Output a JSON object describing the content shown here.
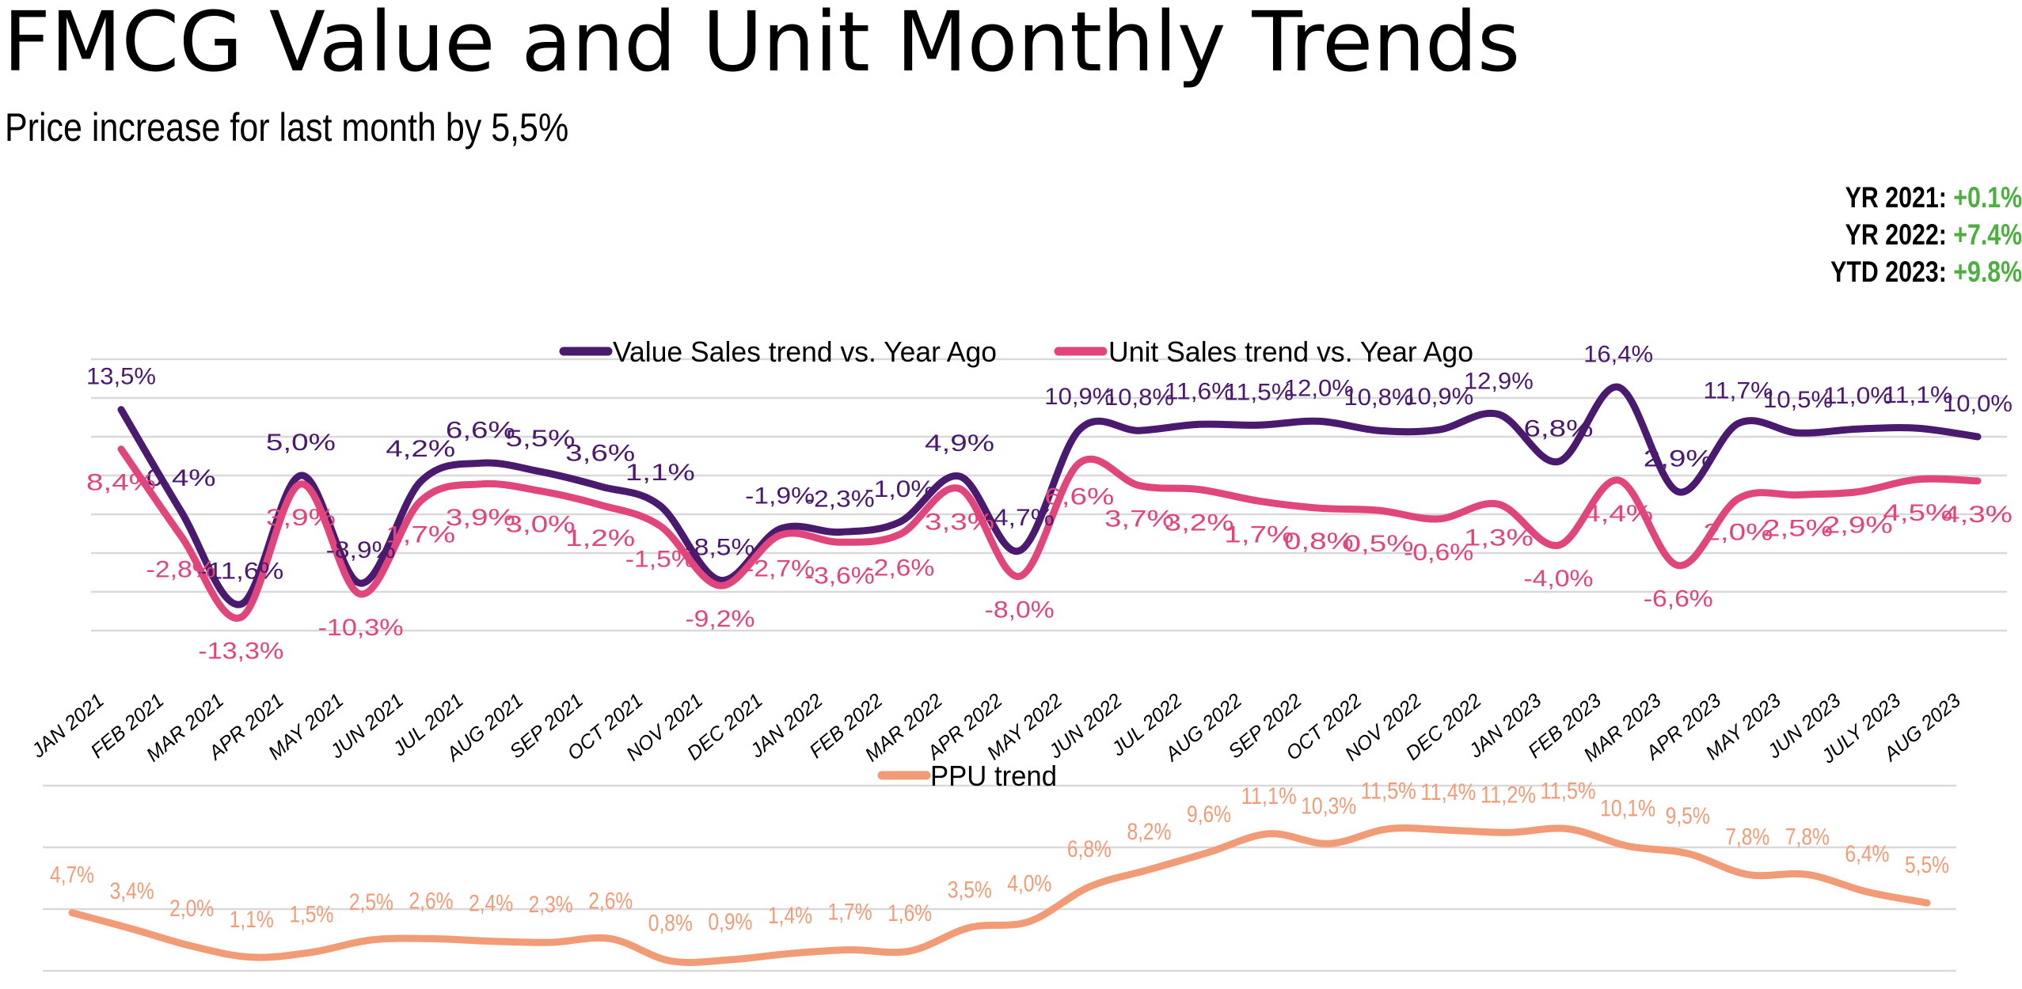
{
  "header": {
    "title": "FMCG Value and Unit Monthly Trends",
    "subtitle": "Price increase for last month by 5,5%"
  },
  "summary": [
    {
      "label": "YR 2021:",
      "value": "+0.1%"
    },
    {
      "label": "YR 2022:",
      "value": "+7.4%"
    },
    {
      "label": "YTD 2023:",
      "value": "+9.8%"
    }
  ],
  "colors": {
    "value": "#4a1a6e",
    "unit": "#e0457c",
    "ppu": "#f29b77",
    "positive": "#4caf3f",
    "grid": "#d9d9d9"
  },
  "chart_data": [
    {
      "type": "line",
      "title": "",
      "xlabel": "",
      "ylabel": "",
      "ylim": [
        -15,
        20
      ],
      "grid": true,
      "legend": "top-center",
      "categories": [
        "JAN 2021",
        "FEB 2021",
        "MAR 2021",
        "APR 2021",
        "MAY 2021",
        "JUN 2021",
        "JUL 2021",
        "AUG 2021",
        "SEP 2021",
        "OCT 2021",
        "NOV 2021",
        "DEC 2021",
        "JAN 2022",
        "FEB 2022",
        "MAR 2022",
        "APR 2022",
        "MAY 2022",
        "JUN 2022",
        "JUL 2022",
        "AUG 2022",
        "SEP 2022",
        "OCT 2022",
        "NOV 2022",
        "DEC 2022",
        "JAN 2023",
        "FEB 2023",
        "MAR 2023",
        "APR 2023",
        "MAY 2023",
        "JUN 2023",
        "JULY 2023",
        "AUG 2023"
      ],
      "series": [
        {
          "name": "Value Sales trend vs. Year Ago",
          "values": [
            13.5,
            0.4,
            -11.6,
            5.0,
            -8.9,
            4.2,
            6.6,
            5.5,
            3.6,
            1.1,
            -8.5,
            -1.9,
            -2.3,
            -1.0,
            4.9,
            -4.7,
            10.9,
            10.8,
            11.6,
            11.5,
            12.0,
            10.8,
            10.9,
            12.9,
            6.8,
            16.4,
            2.9,
            11.7,
            10.5,
            11.0,
            11.1,
            10.0
          ],
          "labels": [
            "13,5%",
            "0,4%",
            "-11,6%",
            "5,0%",
            "-8,9%",
            "4,2%",
            "6,6%",
            "5,5%",
            "3,6%",
            "1,1%",
            "-8,5%",
            "-1,9%",
            "-2,3%",
            "-1,0%",
            "4,9%",
            "-4,7%",
            "10,9%",
            "10,8%",
            "11,6%",
            "11,5%",
            "12,0%",
            "10,8%",
            "10,9%",
            "12,9%",
            "6,8%",
            "16,4%",
            "2,9%",
            "11,7%",
            "10,5%",
            "11,0%",
            "11,1%",
            "10,0%"
          ]
        },
        {
          "name": "Unit Sales trend vs. Year Ago",
          "values": [
            8.4,
            -2.8,
            -13.3,
            3.9,
            -10.3,
            1.7,
            3.9,
            3.0,
            1.2,
            -1.5,
            -9.2,
            -2.7,
            -3.6,
            -2.6,
            3.3,
            -8.0,
            6.6,
            3.7,
            3.2,
            1.7,
            0.8,
            0.5,
            -0.6,
            1.3,
            -4.0,
            4.4,
            -6.6,
            2.0,
            2.5,
            2.9,
            4.5,
            4.3
          ],
          "labels": [
            "8,4%",
            "-2,8%",
            "-13,3%",
            "3,9%",
            "-10,3%",
            "1,7%",
            "3,9%",
            "3,0%",
            "1,2%",
            "-1,5%",
            "-9,2%",
            "-2,7%",
            "-3,6%",
            "-2,6%",
            "3,3%",
            "-8,0%",
            "6,6%",
            "3,7%",
            "3,2%",
            "1,7%",
            "0,8%",
            "0,5%",
            "-0,6%",
            "1,3%",
            "-4,0%",
            "4,4%",
            "-6,6%",
            "2,0%",
            "2,5%",
            "2,9%",
            "4,5%",
            "4,3%"
          ]
        }
      ]
    },
    {
      "type": "line",
      "title": "",
      "xlabel": "",
      "ylabel": "",
      "ylim": [
        0,
        15
      ],
      "grid": true,
      "legend": "top-center",
      "categories": [
        "JAN 2021",
        "FEB 2021",
        "MAR 2021",
        "APR 2021",
        "MAY 2021",
        "JUN 2021",
        "JUL 2021",
        "AUG 2021",
        "SEP 2021",
        "OCT 2021",
        "NOV 2021",
        "DEC 2021",
        "JAN 2022",
        "FEB 2022",
        "MAR 2022",
        "APR 2022",
        "MAY 2022",
        "JUN 2022",
        "JUL 2022",
        "AUG 2022",
        "SEP 2022",
        "OCT 2022",
        "NOV 2022",
        "DEC 2022",
        "JAN 2023",
        "FEB 2023",
        "MAR 2023",
        "APR 2023",
        "MAY 2023",
        "JUN 2023",
        "JULY 2023",
        "AUG 2023"
      ],
      "series": [
        {
          "name": "PPU trend",
          "values": [
            4.7,
            3.4,
            2.0,
            1.1,
            1.5,
            2.5,
            2.6,
            2.4,
            2.3,
            2.6,
            0.8,
            0.9,
            1.4,
            1.7,
            1.6,
            3.5,
            4.0,
            6.8,
            8.2,
            9.6,
            11.1,
            10.3,
            11.5,
            11.4,
            11.2,
            11.5,
            10.1,
            9.5,
            7.8,
            7.8,
            6.4,
            5.5
          ],
          "labels": [
            "4,7%",
            "3,4%",
            "2,0%",
            "1,1%",
            "1,5%",
            "2,5%",
            "2,6%",
            "2,4%",
            "2,3%",
            "2,6%",
            "0,8%",
            "0,9%",
            "1,4%",
            "1,7%",
            "1,6%",
            "3,5%",
            "4,0%",
            "6,8%",
            "8,2%",
            "9,6%",
            "11,1%",
            "10,3%",
            "11,5%",
            "11,4%",
            "11,2%",
            "11,5%",
            "10,1%",
            "9,5%",
            "7,8%",
            "7,8%",
            "6,4%",
            "5,5%"
          ]
        }
      ]
    }
  ]
}
